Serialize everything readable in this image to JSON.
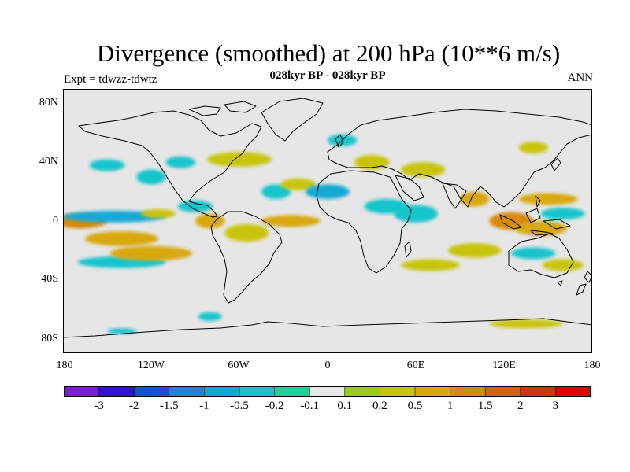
{
  "header": {
    "title": "Divergence (smoothed) at 200 hPa (10**6 m/s)",
    "subtitle": "028kyr BP - 028kyr BP",
    "experiment": "Expt = tdwzz-tdwtz",
    "season": "ANN"
  },
  "map": {
    "y_ticks": [
      "80N",
      "40N",
      "0",
      "40S",
      "80S"
    ],
    "x_ticks": [
      "180",
      "120W",
      "60W",
      "0",
      "60E",
      "120E",
      "180"
    ],
    "background_color": "#e6e6e6"
  },
  "chart_data": {
    "type": "heatmap",
    "title": "Divergence (smoothed) at 200 hPa (10**6 m/s)",
    "field": "divergence difference",
    "units": "10**6 m/s",
    "projection": "cylindrical equidistant",
    "lon_range": [
      -180,
      180
    ],
    "lat_range": [
      -90,
      90
    ],
    "colorbar": {
      "levels": [
        "-3",
        "-2",
        "-1.5",
        "-1",
        "-0.5",
        "-0.2",
        "-0.1",
        "0.1",
        "0.2",
        "0.5",
        "1",
        "1.5",
        "2",
        "3"
      ],
      "colors": [
        "#7a1fd6",
        "#3314d6",
        "#1450d8",
        "#1a88da",
        "#12a8d6",
        "#12c4cc",
        "#18d49a",
        "#e6e6e6",
        "#9ecc14",
        "#c8c40c",
        "#d8a80c",
        "#d88a0c",
        "#d8620c",
        "#d83208",
        "#e00000"
      ]
    },
    "regions": [
      {
        "lon": -168,
        "lat": 0,
        "value": 1.2,
        "rx": 18,
        "ry": 5
      },
      {
        "lon": -140,
        "lat": -12,
        "value": 0.7,
        "rx": 25,
        "ry": 5
      },
      {
        "lon": -145,
        "lat": 3,
        "value": -0.6,
        "rx": 35,
        "ry": 4
      },
      {
        "lon": -140,
        "lat": -28,
        "value": -0.3,
        "rx": 30,
        "ry": 4
      },
      {
        "lon": -120,
        "lat": -22,
        "value": 0.5,
        "rx": 28,
        "ry": 5
      },
      {
        "lon": -150,
        "lat": 38,
        "value": -0.3,
        "rx": 12,
        "ry": 4
      },
      {
        "lon": -120,
        "lat": 30,
        "value": -0.3,
        "rx": 10,
        "ry": 5
      },
      {
        "lon": -115,
        "lat": 5,
        "value": 0.4,
        "rx": 12,
        "ry": 3
      },
      {
        "lon": -90,
        "lat": 10,
        "value": -0.3,
        "rx": 12,
        "ry": 4
      },
      {
        "lon": -80,
        "lat": 0,
        "value": 0.6,
        "rx": 10,
        "ry": 5
      },
      {
        "lon": -55,
        "lat": -8,
        "value": 0.4,
        "rx": 15,
        "ry": 6
      },
      {
        "lon": -60,
        "lat": 42,
        "value": 0.4,
        "rx": 22,
        "ry": 5
      },
      {
        "lon": -100,
        "lat": 40,
        "value": -0.3,
        "rx": 10,
        "ry": 4
      },
      {
        "lon": -35,
        "lat": 20,
        "value": -0.3,
        "rx": 10,
        "ry": 5
      },
      {
        "lon": -20,
        "lat": 25,
        "value": 0.3,
        "rx": 12,
        "ry": 4
      },
      {
        "lon": -25,
        "lat": 0,
        "value": 0.7,
        "rx": 20,
        "ry": 4
      },
      {
        "lon": 0,
        "lat": 20,
        "value": -0.8,
        "rx": 15,
        "ry": 5
      },
      {
        "lon": 40,
        "lat": 10,
        "value": -0.5,
        "rx": 15,
        "ry": 5
      },
      {
        "lon": 30,
        "lat": 40,
        "value": 0.4,
        "rx": 12,
        "ry": 5
      },
      {
        "lon": 65,
        "lat": 35,
        "value": 0.4,
        "rx": 15,
        "ry": 5
      },
      {
        "lon": 60,
        "lat": 5,
        "value": -0.4,
        "rx": 15,
        "ry": 6
      },
      {
        "lon": 100,
        "lat": 15,
        "value": 0.8,
        "rx": 10,
        "ry": 5
      },
      {
        "lon": 125,
        "lat": 0,
        "value": 1.2,
        "rx": 15,
        "ry": 6
      },
      {
        "lon": 150,
        "lat": 15,
        "value": 0.5,
        "rx": 20,
        "ry": 4
      },
      {
        "lon": 145,
        "lat": -5,
        "value": 0.7,
        "rx": 18,
        "ry": 5
      },
      {
        "lon": 160,
        "lat": 5,
        "value": -0.4,
        "rx": 15,
        "ry": 4
      },
      {
        "lon": 100,
        "lat": -20,
        "value": 0.4,
        "rx": 18,
        "ry": 5
      },
      {
        "lon": 140,
        "lat": -22,
        "value": -0.4,
        "rx": 15,
        "ry": 4
      },
      {
        "lon": 70,
        "lat": -30,
        "value": 0.3,
        "rx": 20,
        "ry": 4
      },
      {
        "lon": 160,
        "lat": -30,
        "value": 0.3,
        "rx": 14,
        "ry": 4
      },
      {
        "lon": 135,
        "lat": -70,
        "value": 0.4,
        "rx": 25,
        "ry": 3
      },
      {
        "lon": -140,
        "lat": -75,
        "value": -0.3,
        "rx": 10,
        "ry": 2
      },
      {
        "lon": -80,
        "lat": -65,
        "value": -0.3,
        "rx": 8,
        "ry": 3
      },
      {
        "lon": 10,
        "lat": 55,
        "value": -0.3,
        "rx": 10,
        "ry": 4
      },
      {
        "lon": 140,
        "lat": 50,
        "value": 0.3,
        "rx": 10,
        "ry": 4
      }
    ]
  }
}
